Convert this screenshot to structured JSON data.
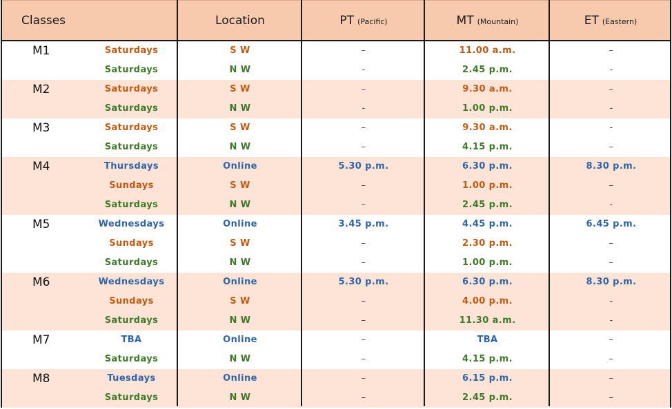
{
  "header": {
    "classes": "Classes",
    "location": "Location",
    "pt": "PT",
    "pt_sub": "(Pacific)",
    "mt": "MT",
    "mt_sub": "(Mountain)",
    "et": "ET",
    "et_sub": "(Eastern)"
  },
  "colors": {
    "header_bg": "#f7c9ad",
    "shade_bg": "#fde4d6",
    "orange": "#c45a12",
    "green": "#3f7a2a",
    "blue": "#2e65a8"
  },
  "groups": [
    {
      "name": "M1",
      "rows": [
        {
          "day": "Saturdays",
          "loc": "S W",
          "pt": "–",
          "mt": "11.00 a.m.",
          "et": "–",
          "color": "orange"
        },
        {
          "day": "Saturdays",
          "loc": "N W",
          "pt": "-",
          "mt": "2.45 p.m.",
          "et": "-",
          "color": "green"
        }
      ]
    },
    {
      "name": "M2",
      "rows": [
        {
          "day": "Saturdays",
          "loc": "S W",
          "pt": "–",
          "mt": "9.30 a.m.",
          "et": "–",
          "color": "orange"
        },
        {
          "day": "Saturdays",
          "loc": "N W",
          "pt": "-",
          "mt": "1.00 p.m.",
          "et": "-",
          "color": "green"
        }
      ]
    },
    {
      "name": "M3",
      "rows": [
        {
          "day": "Saturdays",
          "loc": "S W",
          "pt": "–",
          "mt": "9.30 a.m.",
          "et": "-",
          "color": "orange"
        },
        {
          "day": "Saturdays",
          "loc": "N W",
          "pt": "–",
          "mt": "4.15 p.m.",
          "et": "–",
          "color": "green"
        }
      ]
    },
    {
      "name": "M4",
      "rows": [
        {
          "day": "Thursdays",
          "loc": "Online",
          "pt": "5.30 p.m.",
          "mt": "6.30 p.m.",
          "et": "8.30 p.m.",
          "color": "blue"
        },
        {
          "day": "Sundays",
          "loc": "S W",
          "pt": "–",
          "mt": "1.00 p.m.",
          "et": "–",
          "color": "orange"
        },
        {
          "day": "Saturdays",
          "loc": "N W",
          "pt": "–",
          "mt": "2.45 p.m.",
          "et": "-",
          "color": "green"
        }
      ]
    },
    {
      "name": "M5",
      "rows": [
        {
          "day": "Wednesdays",
          "loc": "Online",
          "pt": "3.45 p.m.",
          "mt": "4.45 p.m.",
          "et": "6.45 p.m.",
          "color": "blue"
        },
        {
          "day": "Sundays",
          "loc": "S W",
          "pt": "–",
          "mt": "2.30 p.m.",
          "et": "–",
          "color": "orange"
        },
        {
          "day": "Saturdays",
          "loc": "N W",
          "pt": "–",
          "mt": "1.00 p.m.",
          "et": "–",
          "color": "green"
        }
      ]
    },
    {
      "name": "M6",
      "rows": [
        {
          "day": "Wednesdays",
          "loc": "Online",
          "pt": "5.30 p.m.",
          "mt": "6.30 p.m.",
          "et": "8.30 p.m.",
          "color": "blue"
        },
        {
          "day": "Sundays",
          "loc": "S W",
          "pt": "–",
          "mt": "4.00 p.m.",
          "et": "-",
          "color": "orange"
        },
        {
          "day": "Saturdays",
          "loc": "N W",
          "pt": "–",
          "mt": "11.30 a.m.",
          "et": "-",
          "color": "green"
        }
      ]
    },
    {
      "name": "M7",
      "rows": [
        {
          "day": "TBA",
          "loc": "Online",
          "pt": "–",
          "mt": "TBA",
          "et": "–",
          "color": "blue"
        },
        {
          "day": "Saturdays",
          "loc": "N W",
          "pt": "–",
          "mt": "4.15 p.m.",
          "et": "–",
          "color": "green"
        }
      ]
    },
    {
      "name": "M8",
      "rows": [
        {
          "day": "Tuesdays",
          "loc": "Online",
          "pt": "–",
          "mt": "6.15 p.m.",
          "et": "–",
          "color": "blue"
        },
        {
          "day": "Saturdays",
          "loc": "N W",
          "pt": "–",
          "mt": "2.45 p.m.",
          "et": "–",
          "color": "green"
        }
      ]
    }
  ]
}
